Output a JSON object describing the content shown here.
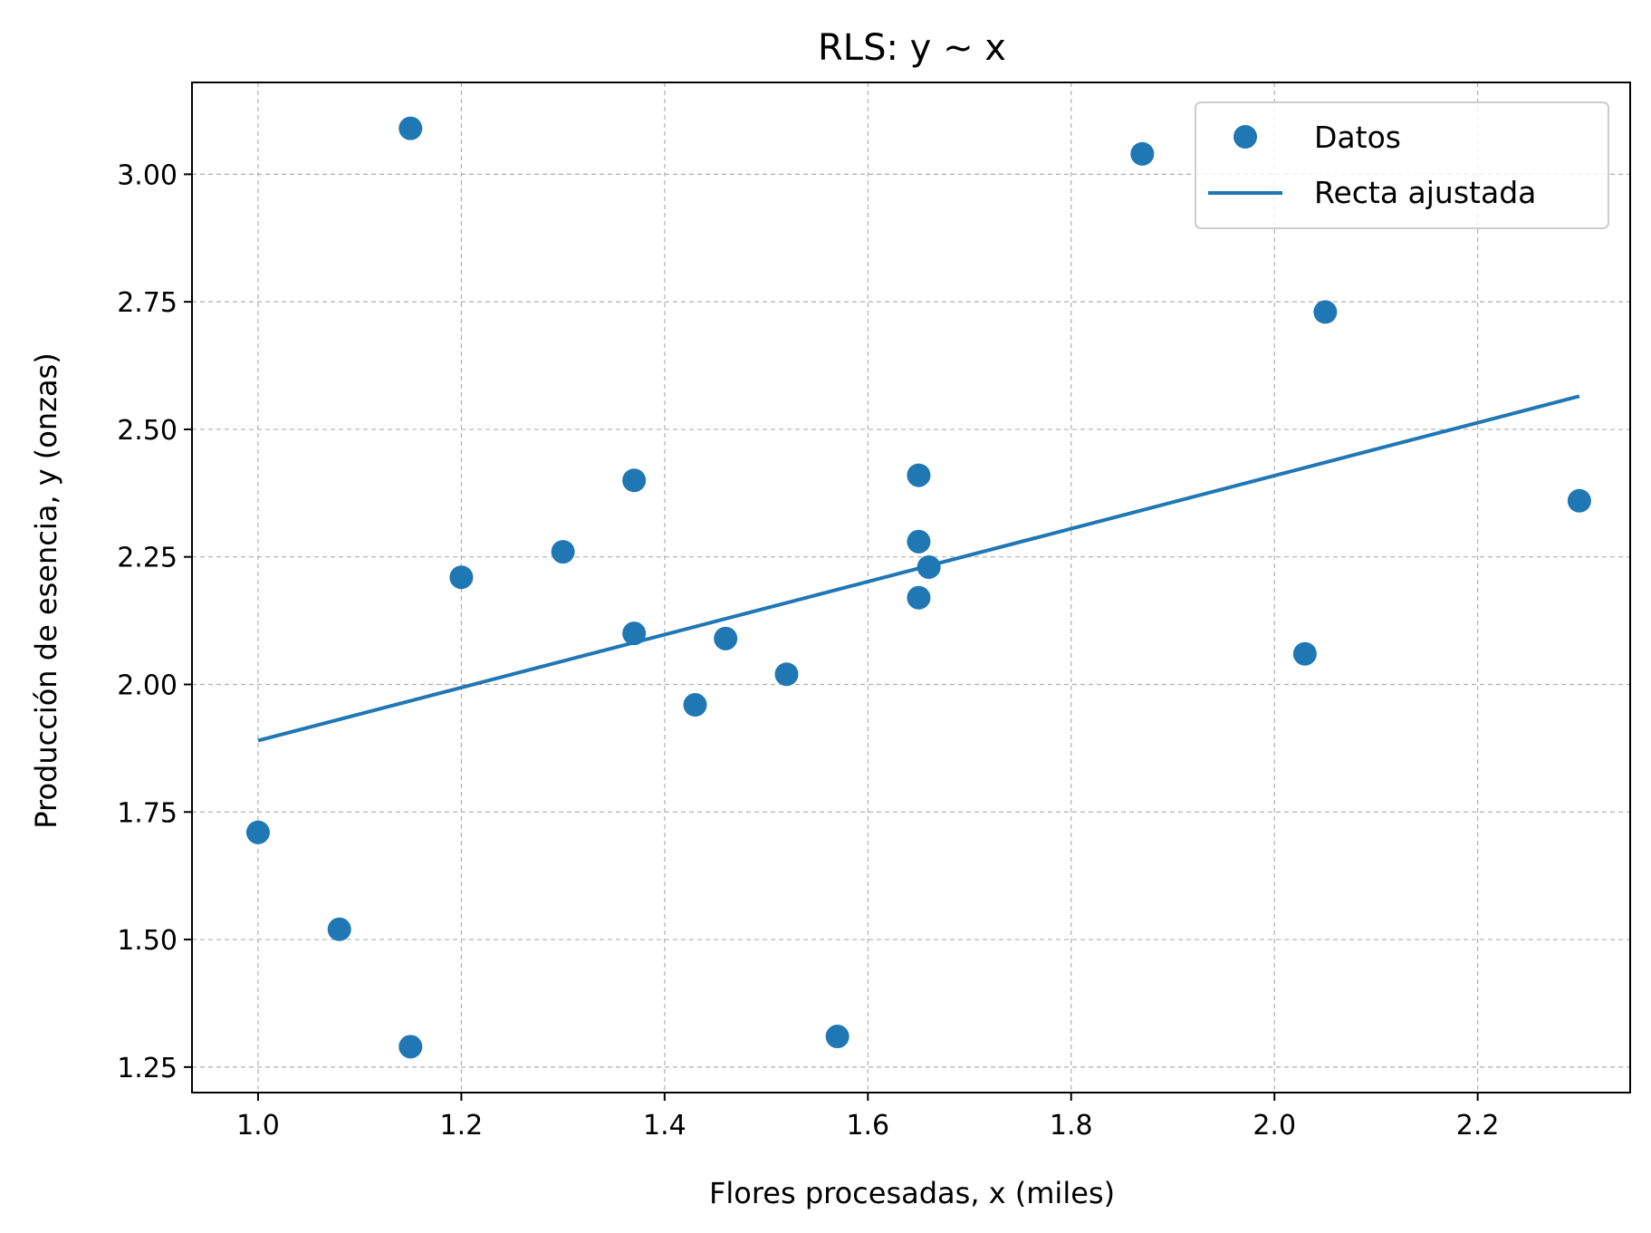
{
  "chart_data": {
    "type": "scatter",
    "title": "RLS: y ~ x",
    "xlabel": "Flores procesadas, x (miles)",
    "ylabel": "Producción de esencia, y (onzas)",
    "xlim": [
      0.935,
      2.35
    ],
    "ylim": [
      1.2,
      3.18
    ],
    "xticks": [
      "1.0",
      "1.2",
      "1.4",
      "1.6",
      "1.8",
      "2.0",
      "2.2"
    ],
    "yticks": [
      "1.25",
      "1.50",
      "1.75",
      "2.00",
      "2.25",
      "2.50",
      "2.75",
      "3.00"
    ],
    "grid": true,
    "legend_position": "top-right",
    "color": "#1f77b4",
    "series": [
      {
        "name": "Datos",
        "kind": "scatter",
        "points": [
          {
            "x": 1.0,
            "y": 1.71
          },
          {
            "x": 1.08,
            "y": 1.52
          },
          {
            "x": 1.15,
            "y": 3.09
          },
          {
            "x": 1.15,
            "y": 1.29
          },
          {
            "x": 1.2,
            "y": 2.21
          },
          {
            "x": 1.3,
            "y": 2.26
          },
          {
            "x": 1.37,
            "y": 2.4
          },
          {
            "x": 1.37,
            "y": 2.1
          },
          {
            "x": 1.43,
            "y": 1.96
          },
          {
            "x": 1.46,
            "y": 2.09
          },
          {
            "x": 1.52,
            "y": 2.02
          },
          {
            "x": 1.57,
            "y": 1.31
          },
          {
            "x": 1.65,
            "y": 2.41
          },
          {
            "x": 1.65,
            "y": 2.28
          },
          {
            "x": 1.65,
            "y": 2.17
          },
          {
            "x": 1.66,
            "y": 2.23
          },
          {
            "x": 1.87,
            "y": 3.04
          },
          {
            "x": 2.03,
            "y": 2.06
          },
          {
            "x": 2.05,
            "y": 2.73
          },
          {
            "x": 2.3,
            "y": 2.36
          }
        ]
      },
      {
        "name": "Recta ajustada",
        "kind": "line",
        "points": [
          {
            "x": 1.0,
            "y": 1.89
          },
          {
            "x": 2.3,
            "y": 2.565
          }
        ]
      }
    ]
  }
}
